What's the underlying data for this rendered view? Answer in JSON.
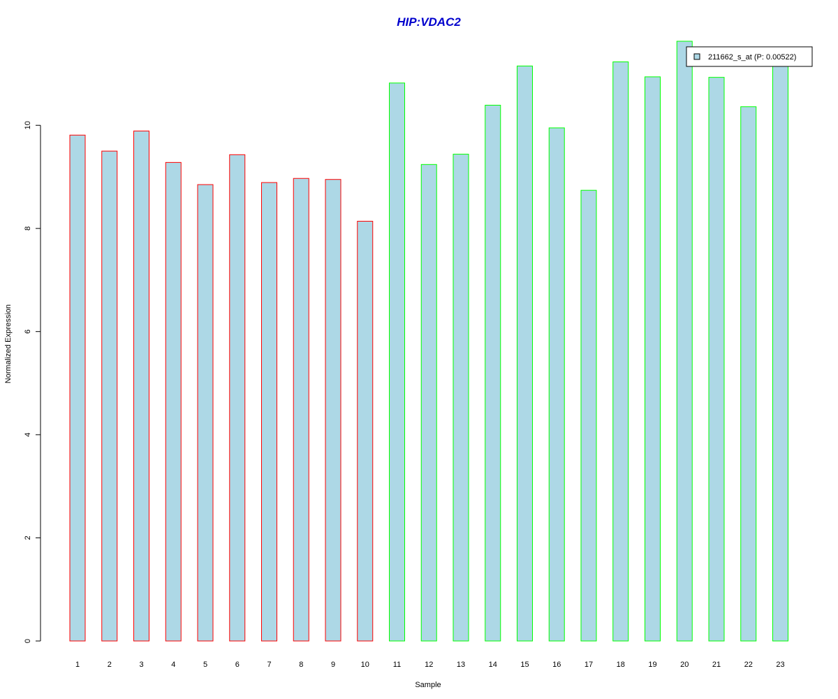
{
  "chart_data": {
    "type": "bar",
    "title": "HIP:VDAC2",
    "xlabel": "Sample",
    "ylabel": "Normalized Expression",
    "categories": [
      "1",
      "2",
      "3",
      "4",
      "5",
      "6",
      "7",
      "8",
      "9",
      "10",
      "11",
      "12",
      "13",
      "14",
      "15",
      "16",
      "17",
      "18",
      "19",
      "20",
      "21",
      "22",
      "23"
    ],
    "series": [
      {
        "name": "211662_s_at (P: 0.00522)",
        "values": [
          9.81,
          9.5,
          9.89,
          9.28,
          8.85,
          9.43,
          8.89,
          8.97,
          8.95,
          8.14,
          10.82,
          9.24,
          9.44,
          10.39,
          11.15,
          9.95,
          8.74,
          11.23,
          10.94,
          11.63,
          10.93,
          10.36,
          11.2
        ]
      }
    ],
    "group_assignment": [
      "red",
      "red",
      "red",
      "red",
      "red",
      "red",
      "red",
      "red",
      "red",
      "red",
      "green",
      "green",
      "green",
      "green",
      "green",
      "green",
      "green",
      "green",
      "green",
      "green",
      "green",
      "green",
      "green"
    ],
    "ylim": [
      0,
      11.63
    ],
    "yticks": [
      0,
      2,
      4,
      6,
      8,
      10
    ],
    "grid": false,
    "legend_position": "top-right",
    "colors": {
      "bar_fill": "#add8e6",
      "red": "#ff0000",
      "green": "#00ff00",
      "title": "#0000cd",
      "axis": "#000000"
    }
  }
}
